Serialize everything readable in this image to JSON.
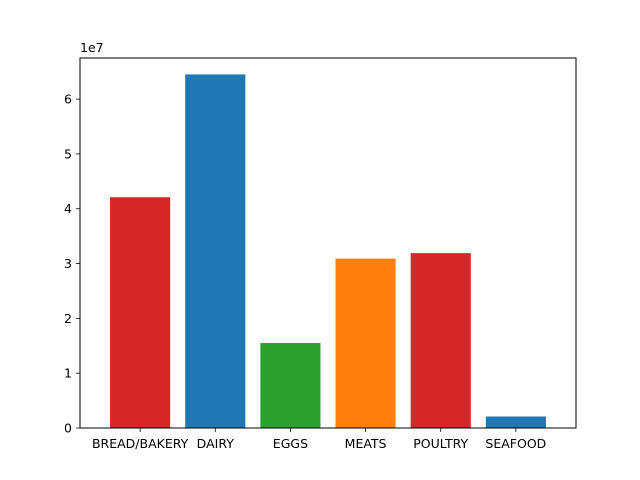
{
  "chart_data": {
    "type": "bar",
    "categories": [
      "BREAD/BAKERY",
      "DAIRY",
      "EGGS",
      "MEATS",
      "POULTRY",
      "SEAFOOD"
    ],
    "values": [
      42100000,
      64500000,
      15500000,
      30900000,
      31900000,
      2100000
    ],
    "bar_colors": [
      "#d62728",
      "#1f77b4",
      "#2ca02c",
      "#ff7f0e",
      "#d62728",
      "#1f77b4"
    ],
    "title": "",
    "xlabel": "",
    "ylabel": "",
    "ylim": [
      0,
      67500000
    ],
    "y_ticks": [
      0,
      10000000,
      20000000,
      30000000,
      40000000,
      50000000,
      60000000
    ],
    "y_tick_labels": [
      "0",
      "1",
      "2",
      "3",
      "4",
      "5",
      "6"
    ],
    "y_offset_label": "1e7",
    "grid": false,
    "legend": "none"
  }
}
